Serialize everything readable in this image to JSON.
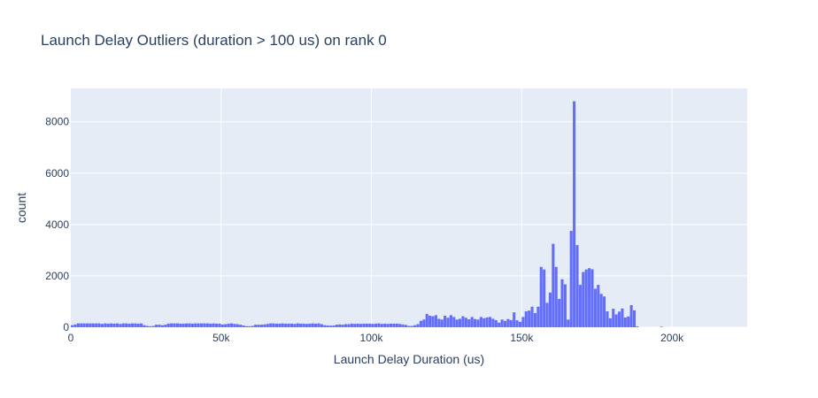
{
  "chart_data": {
    "type": "bar",
    "title": "Launch Delay Outliers (duration > 100 us) on rank 0",
    "xlabel": "Launch Delay Duration (us)",
    "ylabel": "count",
    "xlim": [
      0,
      225000
    ],
    "ylim": [
      0,
      9300
    ],
    "bin_width": 1000,
    "x_ticks": [
      {
        "value": 0,
        "label": "0"
      },
      {
        "value": 50000,
        "label": "50k"
      },
      {
        "value": 100000,
        "label": "100k"
      },
      {
        "value": 150000,
        "label": "150k"
      },
      {
        "value": 200000,
        "label": "200k"
      }
    ],
    "y_ticks": [
      {
        "value": 0,
        "label": "0"
      },
      {
        "value": 2000,
        "label": "2000"
      },
      {
        "value": 4000,
        "label": "4000"
      },
      {
        "value": 6000,
        "label": "6000"
      },
      {
        "value": 8000,
        "label": "8000"
      }
    ],
    "grid": true,
    "bar_color": "#636efa",
    "plot_background": "#e5ecf6",
    "grid_color": "#ffffff",
    "text_color": "#2a3f5f",
    "series": [
      {
        "bin_start": 0,
        "values": [
          80,
          110,
          150,
          150,
          150,
          150,
          150,
          150,
          150,
          150,
          130,
          150,
          140,
          150,
          140,
          150,
          130,
          150,
          150,
          140,
          150,
          150,
          140,
          150,
          80,
          50,
          40,
          50,
          100,
          100,
          80,
          100,
          140,
          150,
          150,
          150,
          140,
          140,
          150,
          150,
          140,
          150,
          150,
          150,
          150,
          150,
          140,
          150,
          140,
          140,
          110,
          120,
          140,
          150,
          130,
          120,
          100,
          70,
          40,
          40,
          50,
          100,
          100,
          100,
          110,
          130,
          150,
          150,
          140,
          140,
          150,
          140,
          140,
          140,
          130,
          150,
          140,
          140,
          130,
          140,
          150,
          140,
          150,
          120,
          80,
          70,
          60,
          70,
          100,
          110,
          100,
          120,
          120,
          140,
          130,
          140,
          130,
          140,
          140,
          140,
          130,
          140,
          150,
          130,
          140,
          130,
          140,
          140,
          140,
          130,
          110,
          90,
          50,
          50,
          80,
          120,
          250,
          300,
          520,
          450,
          430,
          470,
          330,
          300,
          450,
          370,
          470,
          400,
          300,
          330,
          430,
          370,
          310,
          400,
          320,
          300,
          400,
          350,
          380,
          400,
          330,
          280,
          180,
          300,
          250,
          320,
          280,
          580,
          270,
          210,
          400,
          620,
          650,
          800,
          550,
          800,
          2350,
          2250,
          950,
          1350,
          3250,
          2350,
          1100,
          1870,
          1670,
          300,
          3750,
          8800,
          3200,
          1650,
          2150,
          2250,
          2300,
          2260,
          1500,
          1650,
          1300,
          1200,
          620,
          350,
          720,
          500,
          610,
          730,
          380,
          420,
          860,
          660,
          30,
          0,
          0,
          0,
          0,
          0,
          0,
          0,
          20,
          0,
          0,
          0,
          0,
          0,
          0,
          0,
          0,
          0,
          0,
          0,
          0,
          0,
          0,
          0,
          0,
          0,
          0
        ]
      }
    ]
  }
}
